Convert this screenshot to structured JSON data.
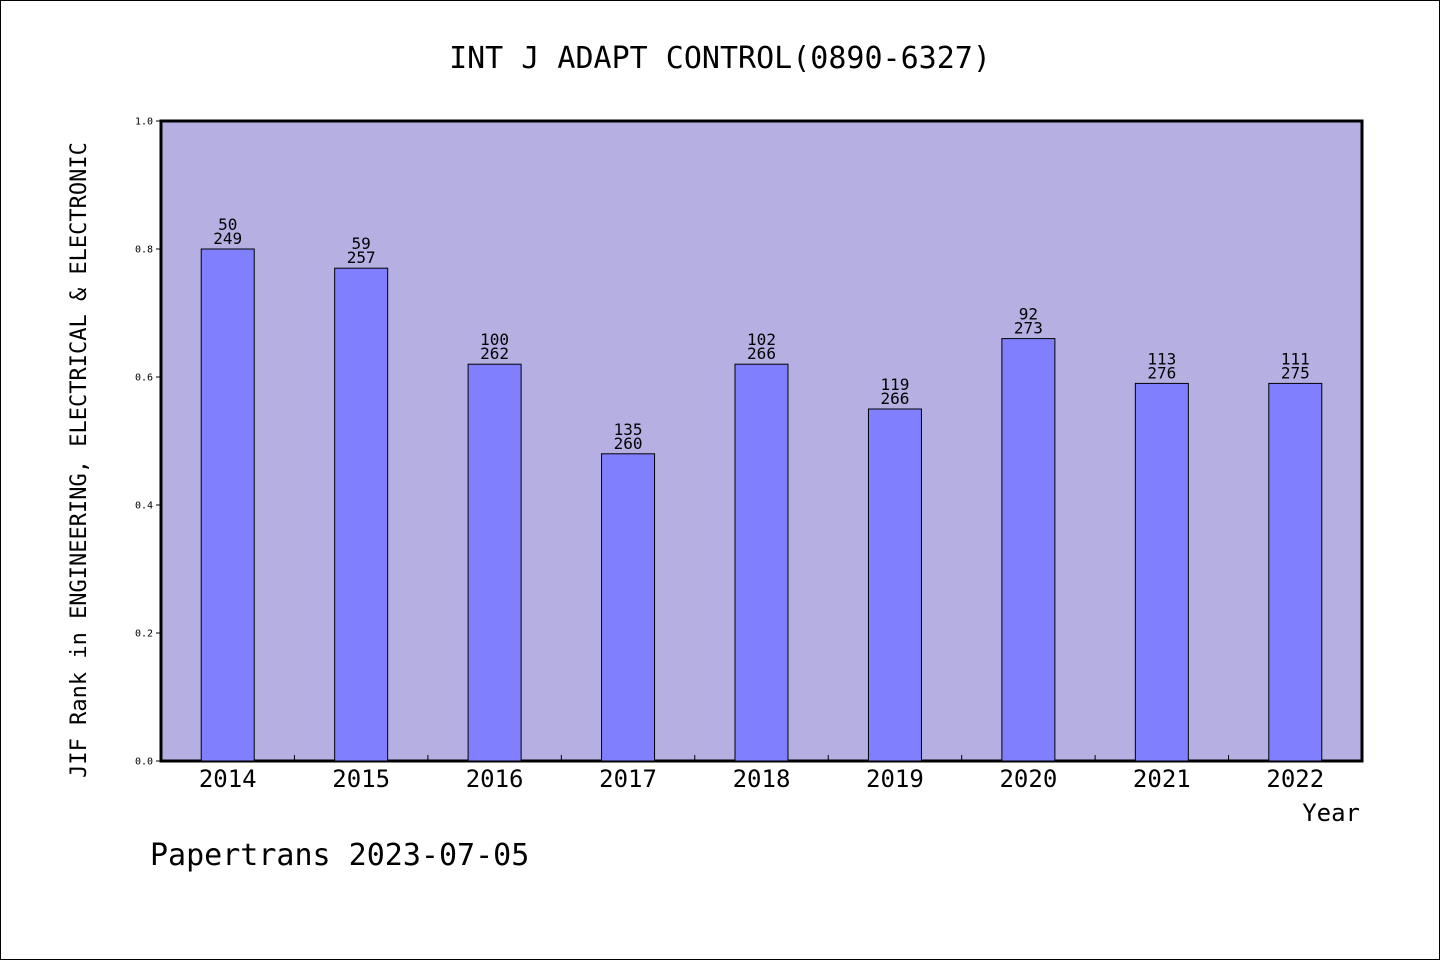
{
  "chart_data": {
    "type": "bar",
    "title": "INT J ADAPT CONTROL(0890-6327)",
    "xlabel": "Year",
    "ylabel": "JIF Rank in ENGINEERING, ELECTRICAL & ELECTRONIC",
    "ylim": [
      0,
      1.0
    ],
    "yticks": [
      "0.0",
      "0.2",
      "0.4",
      "0.6",
      "0.8",
      "1.0"
    ],
    "categories": [
      "2014",
      "2015",
      "2016",
      "2017",
      "2018",
      "2019",
      "2020",
      "2021",
      "2022"
    ],
    "values": [
      0.8,
      0.77,
      0.62,
      0.48,
      0.62,
      0.55,
      0.66,
      0.59,
      0.59
    ],
    "rank_labels": [
      "50",
      "59",
      "100",
      "135",
      "102",
      "119",
      "92",
      "113",
      "111"
    ],
    "total_labels": [
      "249",
      "257",
      "262",
      "260",
      "266",
      "266",
      "273",
      "276",
      "275"
    ],
    "grid": false,
    "colors": {
      "plot_background": "#b6b0e2",
      "bar_fill": "#8080ff",
      "bar_stroke": "#000000"
    }
  },
  "footer": {
    "text": "Papertrans 2023-07-05"
  }
}
